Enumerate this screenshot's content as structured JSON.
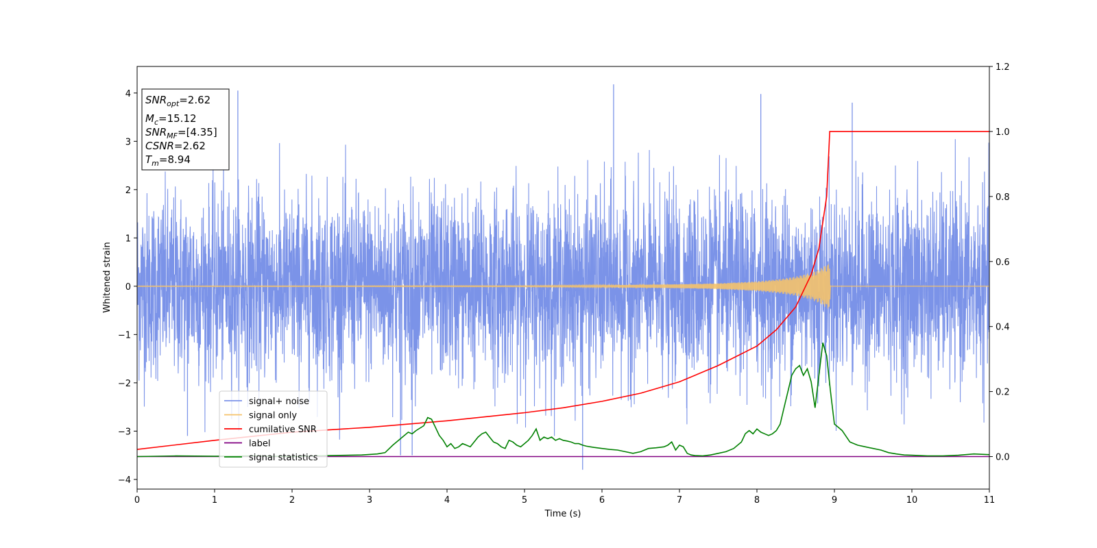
{
  "chart_data": {
    "type": "line",
    "xlabel": "Time (s)",
    "ylabel": "Whitened strain",
    "xlim": [
      0,
      11
    ],
    "ylim_left": [
      -4.2,
      4.55
    ],
    "ylim_right": [
      -0.1,
      1.2
    ],
    "x_ticks": [
      "0",
      "1",
      "2",
      "3",
      "4",
      "5",
      "6",
      "7",
      "8",
      "9",
      "10",
      "11"
    ],
    "y_ticks_left": [
      "−4",
      "−3",
      "−2",
      "−1",
      "0",
      "1",
      "2",
      "3",
      "4"
    ],
    "y_ticks_right": [
      "0.0",
      "0.2",
      "0.4",
      "0.6",
      "0.8",
      "1.0",
      "1.2"
    ],
    "legend_position": "lower-left",
    "info_box": {
      "snr_opt": {
        "name": "SNR",
        "sub": "opt",
        "value": "=2.62"
      },
      "mc": {
        "name": "M",
        "sub": "c",
        "value": "=15.12"
      },
      "snr_mf": {
        "name": "SNR",
        "sub": "MF",
        "value": "=[4.35]"
      },
      "csnr": {
        "name": "CSNR",
        "sub": "",
        "value": "=2.62"
      },
      "tm": {
        "name": "T",
        "sub": "m",
        "value": "=8.94"
      }
    },
    "series": [
      {
        "name": "signal+ noise",
        "color": "#7b93e8",
        "axis": "left",
        "description_amplitude": "whitened noise, roughly ±2 sigma with spikes to ±4",
        "envelope_x": [
          0,
          11
        ],
        "envelope_y": [
          -2.8,
          2.8
        ],
        "notable_spikes": [
          {
            "x": 1.3,
            "y": 4.05
          },
          {
            "x": 6.15,
            "y": 4.18
          },
          {
            "x": 8.05,
            "y": 3.98
          },
          {
            "x": 9.23,
            "y": 3.8
          },
          {
            "x": 5.75,
            "y": -3.8
          },
          {
            "x": 0.65,
            "y": -3.1
          },
          {
            "x": 3.55,
            "y": -3.5
          },
          {
            "x": 3.4,
            "y": -3.5
          }
        ]
      },
      {
        "name": "signal only",
        "color": "#f5c36b",
        "axis": "left",
        "x": [
          0,
          5,
          6,
          7,
          7.5,
          8,
          8.3,
          8.5,
          8.7,
          8.8,
          8.9,
          8.94,
          8.95,
          11
        ],
        "amplitude": [
          0.005,
          0.01,
          0.02,
          0.04,
          0.06,
          0.1,
          0.15,
          0.2,
          0.28,
          0.35,
          0.45,
          0.48,
          0,
          0
        ]
      },
      {
        "name": "cumilative SNR",
        "color": "#ff0000",
        "axis": "right",
        "x": [
          0,
          1,
          2,
          3,
          4,
          5,
          5.5,
          6,
          6.5,
          7,
          7.5,
          8,
          8.25,
          8.5,
          8.7,
          8.8,
          8.9,
          8.94,
          9.0,
          10,
          11
        ],
        "y": [
          0.022,
          0.05,
          0.075,
          0.09,
          0.11,
          0.135,
          0.15,
          0.17,
          0.195,
          0.23,
          0.28,
          0.34,
          0.39,
          0.46,
          0.56,
          0.64,
          0.8,
          1.0,
          1.0,
          1.0,
          1.0
        ]
      },
      {
        "name": "label",
        "color": "#800080",
        "axis": "right",
        "x": [
          0,
          11
        ],
        "y": [
          0.0,
          0.0
        ]
      },
      {
        "name": "signal statistics",
        "color": "#008000",
        "axis": "right",
        "x": [
          0,
          0.5,
          1,
          1.5,
          2,
          2.5,
          2.9,
          3.1,
          3.2,
          3.3,
          3.4,
          3.5,
          3.55,
          3.6,
          3.7,
          3.75,
          3.8,
          3.85,
          3.9,
          3.95,
          4.0,
          4.05,
          4.1,
          4.15,
          4.2,
          4.25,
          4.3,
          4.35,
          4.4,
          4.45,
          4.5,
          4.55,
          4.6,
          4.65,
          4.7,
          4.75,
          4.8,
          4.85,
          4.9,
          4.95,
          5.0,
          5.05,
          5.1,
          5.15,
          5.2,
          5.25,
          5.3,
          5.35,
          5.4,
          5.45,
          5.5,
          5.55,
          5.6,
          5.65,
          5.7,
          5.75,
          5.8,
          5.85,
          5.9,
          6.0,
          6.1,
          6.2,
          6.3,
          6.4,
          6.5,
          6.55,
          6.6,
          6.7,
          6.8,
          6.85,
          6.9,
          6.95,
          7.0,
          7.05,
          7.1,
          7.15,
          7.2,
          7.3,
          7.4,
          7.5,
          7.6,
          7.7,
          7.8,
          7.85,
          7.9,
          7.95,
          8.0,
          8.05,
          8.1,
          8.15,
          8.2,
          8.25,
          8.3,
          8.35,
          8.4,
          8.45,
          8.5,
          8.55,
          8.6,
          8.65,
          8.7,
          8.75,
          8.8,
          8.85,
          8.9,
          8.95,
          9.0,
          9.05,
          9.1,
          9.2,
          9.3,
          9.4,
          9.5,
          9.6,
          9.7,
          9.8,
          9.9,
          10.0,
          10.2,
          10.4,
          10.6,
          10.8,
          11.0
        ],
        "y": [
          0.0,
          0.002,
          0.001,
          0.002,
          0.0,
          0.003,
          0.005,
          0.008,
          0.012,
          0.035,
          0.055,
          0.075,
          0.07,
          0.08,
          0.095,
          0.12,
          0.115,
          0.09,
          0.065,
          0.05,
          0.03,
          0.04,
          0.025,
          0.03,
          0.04,
          0.035,
          0.03,
          0.045,
          0.06,
          0.07,
          0.075,
          0.06,
          0.045,
          0.04,
          0.03,
          0.025,
          0.05,
          0.045,
          0.035,
          0.03,
          0.04,
          0.05,
          0.065,
          0.085,
          0.05,
          0.06,
          0.055,
          0.06,
          0.05,
          0.055,
          0.05,
          0.048,
          0.045,
          0.04,
          0.04,
          0.035,
          0.032,
          0.03,
          0.028,
          0.025,
          0.022,
          0.02,
          0.015,
          0.01,
          0.015,
          0.02,
          0.025,
          0.027,
          0.03,
          0.035,
          0.045,
          0.02,
          0.035,
          0.03,
          0.01,
          0.005,
          0.003,
          0.002,
          0.005,
          0.01,
          0.015,
          0.025,
          0.045,
          0.07,
          0.08,
          0.07,
          0.085,
          0.075,
          0.07,
          0.065,
          0.07,
          0.08,
          0.1,
          0.15,
          0.2,
          0.25,
          0.27,
          0.28,
          0.25,
          0.27,
          0.23,
          0.15,
          0.25,
          0.35,
          0.31,
          0.2,
          0.1,
          0.09,
          0.08,
          0.045,
          0.035,
          0.03,
          0.025,
          0.02,
          0.012,
          0.008,
          0.005,
          0.004,
          0.002,
          0.002,
          0.004,
          0.008,
          0.006
        ]
      }
    ]
  }
}
